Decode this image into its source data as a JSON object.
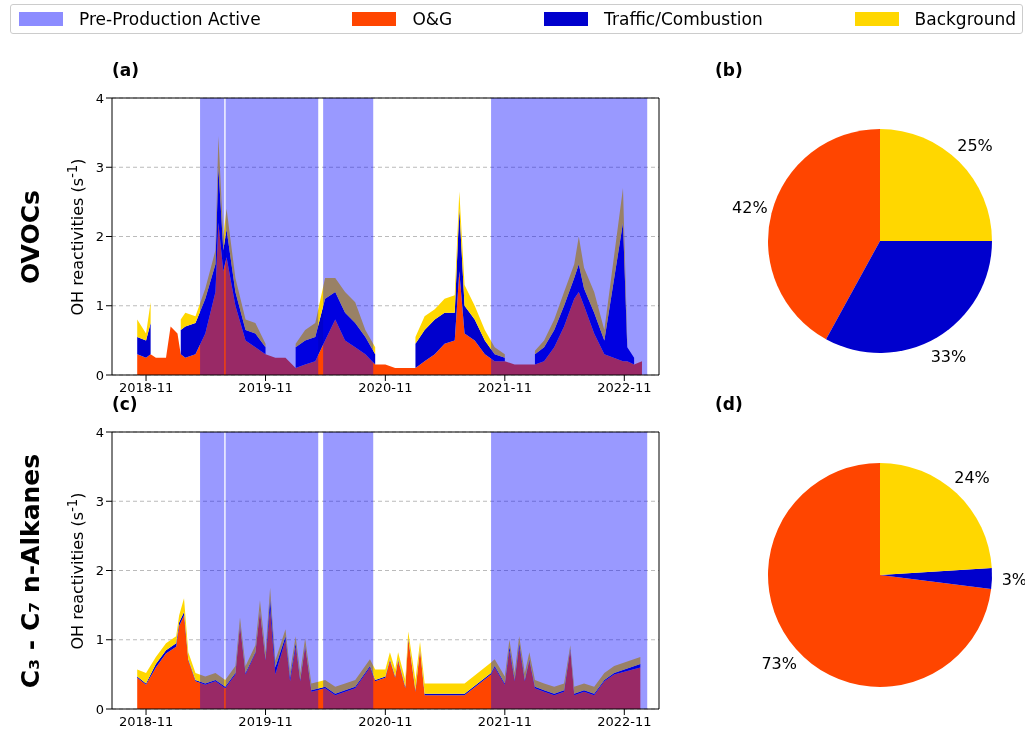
{
  "chart_data": [
    {
      "type": "area",
      "title": "(a)",
      "ylabel": "OH reactivities (s$^{-1}$)",
      "annotations": [
        "OVOCs"
      ],
      "stacked": true,
      "legend": "top",
      "grid": "y",
      "x": [
        "2018-10-05",
        "2018-11-01",
        "2018-11-15",
        "2018-12-01",
        "2019-01-01",
        "2019-01-15",
        "2019-02-05",
        "2019-02-15",
        "2019-03-01",
        "2019-04-01",
        "2019-05-01",
        "2019-06-01",
        "2019-06-10",
        "2019-06-25",
        "2019-07-05",
        "2019-08-01",
        "2019-09-01",
        "2019-10-01",
        "2019-11-01",
        "2019-12-01",
        "2020-01-01",
        "2020-02-01",
        "2020-03-01",
        "2020-04-01",
        "2020-05-01",
        "2020-06-01",
        "2020-07-01",
        "2020-08-01",
        "2020-09-01",
        "2020-10-01",
        "2020-11-01",
        "2020-12-01",
        "2021-01-01",
        "2021-02-01",
        "2021-03-01",
        "2021-04-01",
        "2021-05-01",
        "2021-06-01",
        "2021-06-15",
        "2021-07-01",
        "2021-08-01",
        "2021-09-01",
        "2021-10-01",
        "2021-11-01",
        "2021-12-01",
        "2022-01-01",
        "2022-02-01",
        "2022-03-01",
        "2022-04-01",
        "2022-05-01",
        "2022-06-01",
        "2022-06-15",
        "2022-07-01",
        "2022-08-01",
        "2022-09-01",
        "2022-10-28",
        "2022-11-10",
        "2022-12-01",
        "2022-12-25"
      ],
      "series": [
        {
          "name": "O&G",
          "color": "#ff4500",
          "values": [
            0.3,
            0.25,
            0.3,
            0.25,
            0.25,
            0.7,
            0.6,
            0.3,
            0.25,
            0.3,
            0.6,
            1.2,
            2.2,
            1.5,
            1.7,
            1.0,
            0.5,
            0.4,
            0.3,
            0.25,
            0.25,
            0.1,
            0.15,
            0.2,
            0.5,
            0.8,
            0.5,
            0.4,
            0.3,
            0.15,
            0.15,
            0.1,
            0.1,
            0.1,
            0.2,
            0.3,
            0.45,
            0.5,
            1.5,
            0.6,
            0.5,
            0.3,
            0.2,
            0.2,
            0.15,
            0.15,
            0.15,
            0.2,
            0.4,
            0.7,
            1.1,
            1.2,
            1.0,
            0.6,
            0.3,
            0.2,
            0.2,
            0.15,
            0.2
          ]
        },
        {
          "name": "Traffic/Combustion",
          "color": "#0000cd",
          "values": [
            0.25,
            0.25,
            0.45,
            null,
            null,
            null,
            null,
            0.35,
            0.45,
            0.45,
            0.5,
            0.4,
            0.8,
            0.3,
            0.4,
            0.2,
            0.15,
            0.2,
            0.1,
            null,
            null,
            0.3,
            0.35,
            0.35,
            0.6,
            0.4,
            0.4,
            0.35,
            0.25,
            0.15,
            null,
            null,
            null,
            0.35,
            0.45,
            0.5,
            0.45,
            0.4,
            0.9,
            0.4,
            0.3,
            0.2,
            0.1,
            0.05,
            null,
            null,
            0.15,
            0.2,
            0.25,
            0.3,
            0.3,
            0.4,
            0.25,
            0.3,
            0.2,
            2.0,
            0.2,
            0.1,
            null
          ]
        },
        {
          "name": "Background",
          "color": "#ffd700",
          "values": [
            0.25,
            0.1,
            0.3,
            null,
            null,
            null,
            null,
            0.15,
            0.2,
            0.1,
            0.15,
            0.2,
            0.45,
            0.2,
            0.3,
            0.2,
            0.15,
            0.15,
            0.05,
            null,
            null,
            0.05,
            0.15,
            0.2,
            0.3,
            0.2,
            0.3,
            0.3,
            0.1,
            0.1,
            null,
            null,
            null,
            0.1,
            0.2,
            0.15,
            0.2,
            0.25,
            0.25,
            0.3,
            0.2,
            0.15,
            0.1,
            0.05,
            null,
            null,
            0.05,
            0.1,
            0.15,
            0.2,
            0.2,
            0.4,
            0.3,
            0.3,
            0.15,
            0.5,
            0.1,
            null,
            null
          ]
        }
      ],
      "bands": [
        {
          "axis": "x",
          "from": "2019-04-15",
          "to": "2019-06-28",
          "label": "Pre-Production Active",
          "color": "#0000ff"
        },
        {
          "axis": "x",
          "from": "2019-07-02",
          "to": "2020-04-10",
          "color": "#0000ff"
        },
        {
          "axis": "x",
          "from": "2020-04-25",
          "to": "2020-09-25",
          "color": "#0000ff"
        },
        {
          "axis": "x",
          "from": "2021-09-20",
          "to": "2023-01-10",
          "color": "#0000ff"
        }
      ],
      "xlim": [
        "2018-07-20",
        "2023-02-15"
      ],
      "xticks": [
        "2018-11",
        "2019-11",
        "2020-11",
        "2021-11",
        "2022-11"
      ],
      "ylim": [
        0,
        4
      ],
      "yticks": [
        0,
        1,
        2,
        3,
        4
      ]
    },
    {
      "type": "pie",
      "title": "(b)",
      "categories": [
        null,
        null,
        null
      ],
      "values": [
        42,
        33,
        25
      ],
      "colors": [
        "#ff4500",
        "#0000cd",
        "#ffd700"
      ],
      "value_labels": [
        "42%",
        "33%",
        "25%"
      ]
    },
    {
      "type": "area",
      "title": "(c)",
      "ylabel": "OH reactivities (s$^{-1}$)",
      "annotations": [
        "C₃ - C₇ n-Alkanes"
      ],
      "stacked": true,
      "grid": "y",
      "x": [
        "2018-10-05",
        "2018-11-01",
        "2018-12-01",
        "2019-01-01",
        "2019-02-01",
        "2019-02-10",
        "2019-02-25",
        "2019-03-10",
        "2019-04-01",
        "2019-05-01",
        "2019-06-01",
        "2019-07-01",
        "2019-08-01",
        "2019-08-15",
        "2019-09-01",
        "2019-10-01",
        "2019-10-15",
        "2019-11-01",
        "2019-11-15",
        "2019-12-01",
        "2020-01-01",
        "2020-01-15",
        "2020-02-01",
        "2020-02-15",
        "2020-03-01",
        "2020-03-20",
        "2020-05-01",
        "2020-06-01",
        "2020-07-01",
        "2020-08-01",
        "2020-09-15",
        "2020-10-01",
        "2020-11-01",
        "2020-11-15",
        "2020-12-01",
        "2020-12-10",
        "2021-01-01",
        "2021-01-10",
        "2021-02-01",
        "2021-02-15",
        "2021-03-01",
        "2021-05-01",
        "2021-07-01",
        "2021-09-20",
        "2021-10-01",
        "2021-11-01",
        "2021-11-15",
        "2021-12-01",
        "2021-12-15",
        "2022-01-01",
        "2022-01-15",
        "2022-02-01",
        "2022-03-01",
        "2022-04-01",
        "2022-05-01",
        "2022-05-20",
        "2022-06-01",
        "2022-07-01",
        "2022-08-01",
        "2022-09-01",
        "2022-10-01",
        "2022-12-20"
      ],
      "series": [
        {
          "color": "#ff4500",
          "values": [
            0.45,
            0.35,
            0.6,
            0.8,
            0.9,
            1.2,
            1.35,
            0.7,
            0.4,
            0.35,
            0.4,
            0.3,
            0.5,
            1.2,
            0.5,
            0.8,
            1.4,
            0.7,
            1.45,
            0.5,
            1.0,
            0.4,
            0.9,
            0.4,
            0.9,
            0.25,
            0.3,
            0.2,
            0.25,
            0.3,
            0.6,
            0.4,
            0.45,
            0.7,
            0.45,
            0.7,
            0.3,
            1.0,
            0.25,
            0.85,
            0.2,
            0.2,
            0.2,
            0.5,
            0.6,
            0.35,
            0.85,
            0.4,
            0.9,
            0.4,
            0.7,
            0.3,
            0.25,
            0.2,
            0.25,
            0.85,
            0.2,
            0.25,
            0.2,
            0.4,
            0.5,
            0.6
          ]
        },
        {
          "color": "#0000cd",
          "values": [
            0.02,
            0.02,
            0.05,
            0.05,
            0.05,
            0.05,
            0.05,
            0.02,
            0.02,
            0.02,
            0.02,
            0.02,
            0.02,
            0.02,
            0.02,
            0.02,
            0.02,
            0.02,
            0.15,
            0.1,
            0.05,
            0.05,
            0.05,
            0.02,
            0.02,
            0.02,
            0.02,
            0.02,
            0.02,
            0.02,
            0.02,
            0.02,
            0.02,
            0.02,
            0.02,
            0.02,
            0.02,
            0.02,
            0.02,
            0.02,
            0.02,
            0.02,
            0.02,
            0.02,
            0.02,
            0.02,
            0.05,
            0.02,
            0.05,
            0.02,
            0.02,
            0.02,
            0.02,
            0.02,
            0.02,
            0.02,
            0.02,
            0.02,
            0.02,
            0.02,
            0.02,
            0.05
          ]
        },
        {
          "color": "#ffd700",
          "values": [
            0.1,
            0.15,
            0.1,
            0.1,
            0.1,
            0.1,
            0.2,
            0.1,
            0.1,
            0.1,
            0.1,
            0.1,
            0.1,
            0.1,
            0.1,
            0.1,
            0.15,
            0.1,
            0.15,
            0.1,
            0.1,
            0.1,
            0.1,
            0.1,
            0.1,
            0.1,
            0.1,
            0.1,
            0.1,
            0.1,
            0.1,
            0.15,
            0.1,
            0.1,
            0.1,
            0.1,
            0.1,
            0.1,
            0.15,
            0.1,
            0.15,
            0.15,
            0.15,
            0.15,
            0.1,
            0.1,
            0.1,
            0.1,
            0.1,
            0.1,
            0.1,
            0.1,
            0.1,
            0.1,
            0.1,
            0.05,
            0.1,
            0.1,
            0.1,
            0.1,
            0.1,
            0.1
          ]
        }
      ],
      "bands": [
        {
          "axis": "x",
          "from": "2019-04-15",
          "to": "2019-06-28",
          "color": "#0000ff"
        },
        {
          "axis": "x",
          "from": "2019-07-02",
          "to": "2020-04-10",
          "color": "#0000ff"
        },
        {
          "axis": "x",
          "from": "2020-04-25",
          "to": "2020-09-25",
          "color": "#0000ff"
        },
        {
          "axis": "x",
          "from": "2021-09-20",
          "to": "2023-01-10",
          "color": "#0000ff"
        }
      ],
      "xlim": [
        "2018-07-20",
        "2023-02-15"
      ],
      "xticks": [
        "2018-11",
        "2019-11",
        "2020-11",
        "2021-11",
        "2022-11"
      ],
      "ylim": [
        0,
        4
      ],
      "yticks": [
        0,
        1,
        2,
        3,
        4
      ]
    },
    {
      "type": "pie",
      "title": "(d)",
      "categories": [
        null,
        null,
        null
      ],
      "values": [
        73,
        3,
        24
      ],
      "colors": [
        "#ff4500",
        "#0000cd",
        "#ffd700"
      ],
      "value_labels": [
        "73%",
        "3%",
        "24%"
      ]
    }
  ]
}
